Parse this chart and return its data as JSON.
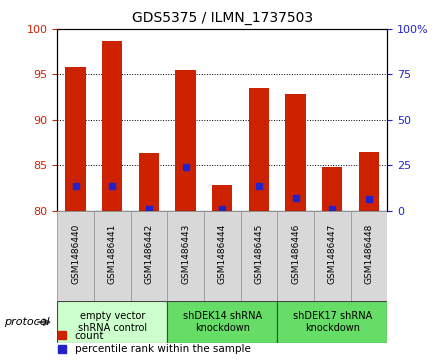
{
  "title": "GDS5375 / ILMN_1737503",
  "samples": [
    "GSM1486440",
    "GSM1486441",
    "GSM1486442",
    "GSM1486443",
    "GSM1486444",
    "GSM1486445",
    "GSM1486446",
    "GSM1486447",
    "GSM1486448"
  ],
  "counts": [
    95.8,
    98.7,
    86.3,
    95.5,
    82.8,
    93.5,
    92.8,
    84.8,
    86.5
  ],
  "percentiles_raw": [
    13.5,
    13.5,
    1.0,
    24.0,
    1.0,
    13.5,
    7.0,
    1.0,
    6.5
  ],
  "ylim": [
    80,
    100
  ],
  "y_ticks": [
    80,
    85,
    90,
    95,
    100
  ],
  "y2lim": [
    0,
    100
  ],
  "y2_ticks": [
    0,
    25,
    50,
    75,
    100
  ],
  "y2_ticklabels": [
    "0",
    "25",
    "50",
    "75",
    "100%"
  ],
  "groups": [
    {
      "label": "empty vector\nshRNA control",
      "indices": [
        0,
        1,
        2
      ],
      "color": "#ccffcc"
    },
    {
      "label": "shDEK14 shRNA\nknockdown",
      "indices": [
        3,
        4,
        5
      ],
      "color": "#66dd66"
    },
    {
      "label": "shDEK17 shRNA\nknockdown",
      "indices": [
        6,
        7,
        8
      ],
      "color": "#66dd66"
    }
  ],
  "bar_color": "#cc2200",
  "percentile_color": "#2222cc",
  "bar_width": 0.55,
  "plot_bg": "#ffffff",
  "left_tick_color": "#cc2200",
  "right_tick_color": "#2222cc",
  "sample_box_color": "#d8d8d8",
  "protocol_label": "protocol",
  "legend_count": "count",
  "legend_percentile": "percentile rank within the sample"
}
